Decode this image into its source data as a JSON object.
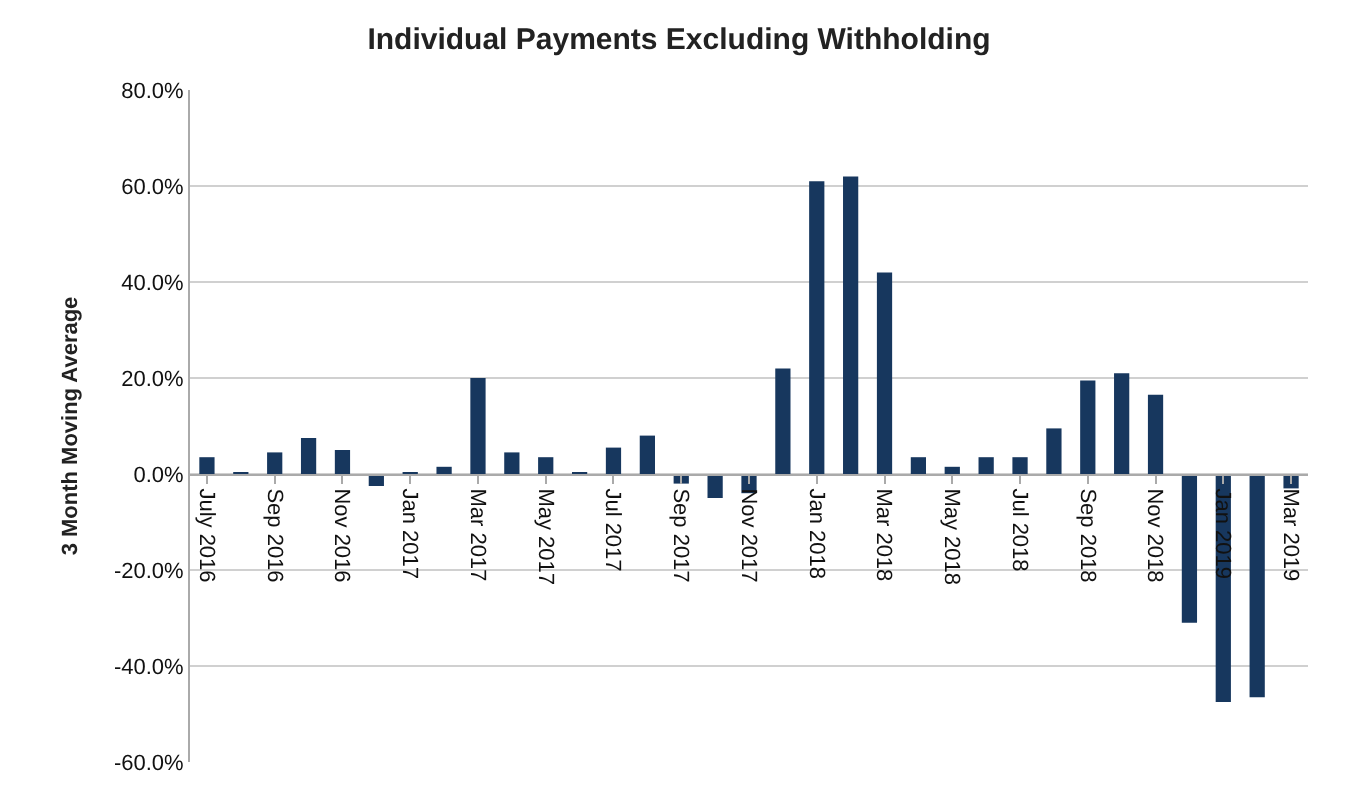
{
  "chart_data": {
    "type": "bar",
    "title": "Individual Payments Excluding Withholding",
    "ylabel": "3 Month Moving Average",
    "categories": [
      "July 2016",
      null,
      "Sep 2016",
      null,
      "Nov 2016",
      null,
      "Jan 2017",
      null,
      "Mar 2017",
      null,
      "May 2017",
      null,
      "Jul 2017",
      null,
      "Sep 2017",
      null,
      "Nov 2017",
      null,
      "Jan 2018",
      null,
      "Mar 2018",
      null,
      "May 2018",
      null,
      "Jul 2018",
      null,
      "Sep 2018",
      null,
      "Nov 2018",
      null,
      "Jan 2019",
      null,
      "Mar 2019"
    ],
    "values": [
      3.5,
      0.3,
      4.5,
      7.5,
      5,
      -2.5,
      0.3,
      1.5,
      20,
      4.5,
      3.5,
      0.2,
      5.5,
      8,
      -2,
      -5,
      -4,
      22,
      61,
      62,
      42,
      3.5,
      1.5,
      3.5,
      3.5,
      9.5,
      19.5,
      21,
      16.5,
      -31,
      -47.5,
      -46.5,
      -3
    ],
    "color": "#17375e",
    "ylim": [
      -60,
      80
    ],
    "yticks": [
      {
        "value": -60,
        "label": "-60.0%"
      },
      {
        "value": -40,
        "label": "-40.0%"
      },
      {
        "value": -20,
        "label": "-20.0%"
      },
      {
        "value": 0,
        "label": "0.0%"
      },
      {
        "value": 20,
        "label": "20.0%"
      },
      {
        "value": 40,
        "label": "40.0%"
      },
      {
        "value": 60,
        "label": "60.0%"
      },
      {
        "value": 80,
        "label": "80.0%"
      }
    ],
    "grid": "y"
  }
}
